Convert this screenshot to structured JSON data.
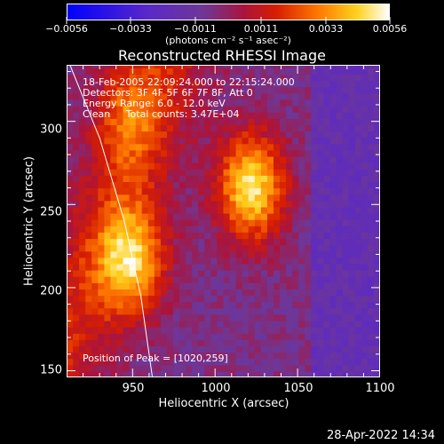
{
  "colorbar": {
    "tick_labels": [
      "−0.0056",
      "−0.0033",
      "−0.0011",
      "0.0011",
      "0.0033",
      "0.0056"
    ],
    "units": "(photons cm⁻² s⁻¹ asec⁻²)"
  },
  "annotations": {
    "time_range": "18-Feb-2005 22:09:24.000 to 22:15:24.000",
    "detectors": "Detectors: 3F 4F 5F 6F 7F 8F, Att 0",
    "energy_range": "Energy Range: 6.0 - 12.0 keV",
    "clean_counts": "Clean     Total counts: 3.47E+04",
    "peak_position": "Position of Peak = [1020,259]"
  },
  "timestamp": "28-Apr-2022 14:34",
  "chart_data": {
    "type": "heatmap",
    "title": "Reconstructed RHESSI Image",
    "xlabel": "Heliocentric X (arcsec)",
    "ylabel": "Heliocentric Y (arcsec)",
    "xlim": [
      910,
      1100
    ],
    "ylim": [
      146,
      334
    ],
    "x_ticks": [
      950,
      1000,
      1050,
      1100
    ],
    "y_ticks": [
      150,
      200,
      250,
      300
    ],
    "colorbar_range": [
      -0.0056,
      0.0056
    ],
    "colormap": "red-temperature (blue-negative to white-positive)",
    "limb_curve": [
      [
        912,
        334
      ],
      [
        930,
        290
      ],
      [
        945,
        240
      ],
      [
        955,
        195
      ],
      [
        962,
        146
      ]
    ],
    "sources": [
      {
        "name": "",
        "x": 1020,
        "y": 259,
        "intensity": 0.0056
      },
      {
        "name": "",
        "x": 948,
        "y": 214,
        "intensity": 0.0045
      },
      {
        "name": "",
        "x": 945,
        "y": 303,
        "intensity": 0.002
      }
    ]
  }
}
